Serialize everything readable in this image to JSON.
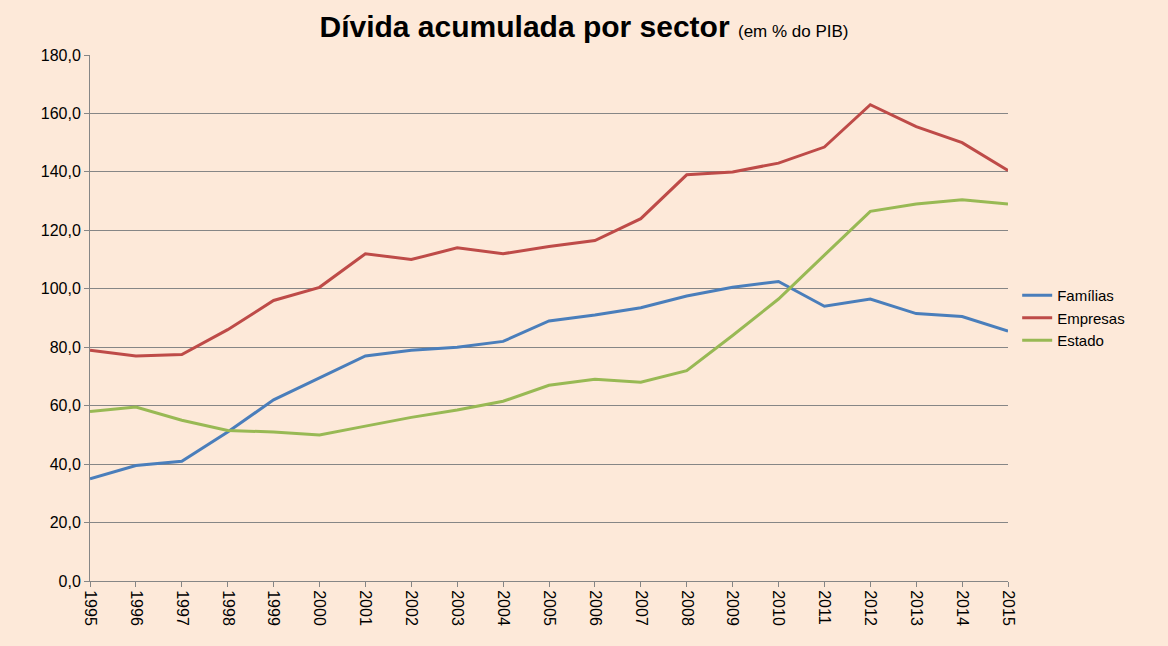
{
  "chart_data": {
    "type": "line",
    "title": "Dívida acumulada por sector",
    "subtitle": "(em % do PIB)",
    "categories": [
      "1995",
      "1996",
      "1997",
      "1998",
      "1999",
      "2000",
      "2001",
      "2002",
      "2003",
      "2004",
      "2005",
      "2006",
      "2007",
      "2008",
      "2009",
      "2010",
      "2011",
      "2012",
      "2013",
      "2014",
      "2015"
    ],
    "series": [
      {
        "name": "Famílias",
        "color": "#4a7ebb",
        "values": [
          35,
          39.5,
          41,
          51,
          62,
          69.5,
          77,
          79,
          80,
          82,
          89,
          91,
          93.5,
          97.5,
          100.5,
          102.5,
          94,
          96.5,
          91.5,
          90.5,
          85.5
        ]
      },
      {
        "name": "Empresas",
        "color": "#be4b48",
        "values": [
          79,
          77,
          77.5,
          86,
          96,
          100.5,
          112,
          110,
          114,
          112,
          114.5,
          116.5,
          124,
          139,
          140,
          143,
          148.5,
          163,
          155.5,
          150,
          140.5
        ]
      },
      {
        "name": "Estado",
        "color": "#98b954",
        "values": [
          58,
          59.5,
          55,
          51.5,
          51,
          50,
          53,
          56,
          58.5,
          61.5,
          67,
          69,
          68,
          72,
          84,
          96.5,
          111.5,
          126.5,
          129,
          130.5,
          129
        ]
      }
    ],
    "ylim": [
      0,
      180
    ],
    "yticks": [
      {
        "value": 0,
        "label": "0,0"
      },
      {
        "value": 20,
        "label": "20,0"
      },
      {
        "value": 40,
        "label": "40,0"
      },
      {
        "value": 60,
        "label": "60,0"
      },
      {
        "value": 80,
        "label": "80,0"
      },
      {
        "value": 100,
        "label": "100,0"
      },
      {
        "value": 120,
        "label": "120,0"
      },
      {
        "value": 140,
        "label": "140,0"
      },
      {
        "value": 160,
        "label": "160,0"
      },
      {
        "value": 180,
        "label": "180,0"
      }
    ],
    "grid": true,
    "legend": "right"
  }
}
